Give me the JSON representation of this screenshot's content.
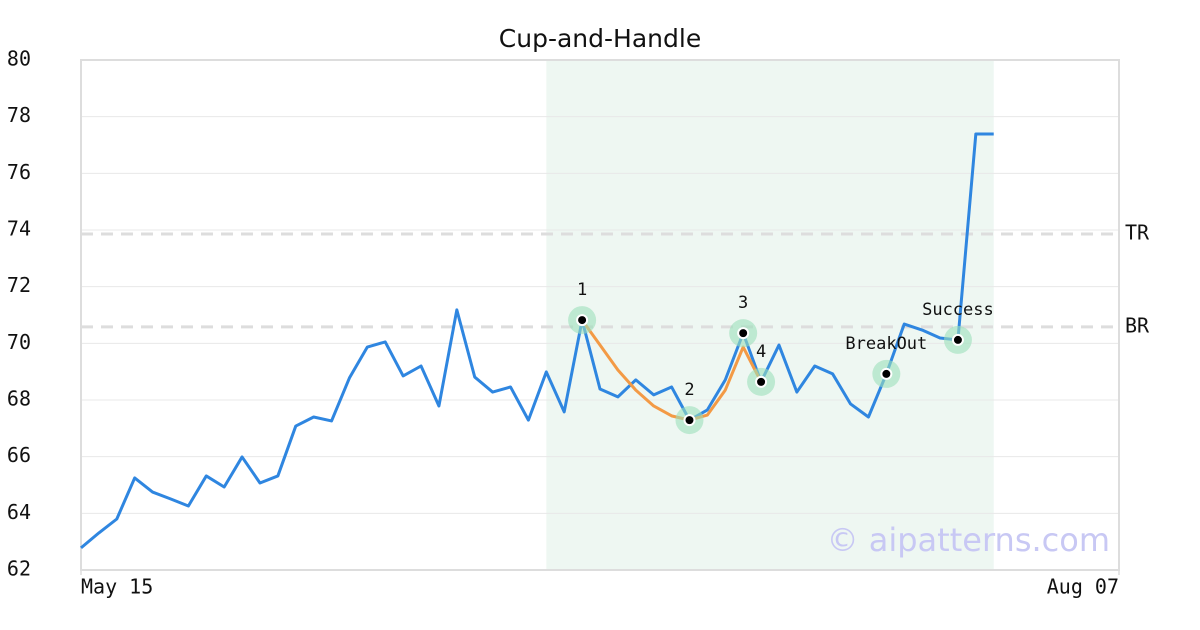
{
  "chart_data": {
    "type": "line",
    "title": "Cup-and-Handle",
    "x": [
      0,
      1,
      2,
      3,
      4,
      5,
      6,
      7,
      8,
      9,
      10,
      11,
      12,
      13,
      14,
      15,
      16,
      17,
      18,
      19,
      20,
      21,
      22,
      23,
      24,
      25,
      26,
      27,
      28,
      29,
      30,
      31,
      32,
      33,
      34,
      35,
      36,
      37,
      38,
      39,
      40,
      41,
      42,
      43,
      44,
      45,
      46,
      47,
      48,
      49,
      50,
      51
    ],
    "xlim": [
      0,
      58
    ],
    "xticks": [
      {
        "value": 0,
        "label": "May 15"
      },
      {
        "value": 58,
        "label": "Aug 07"
      }
    ],
    "ylim": [
      62,
      80
    ],
    "yticks": [
      62,
      64,
      66,
      68,
      70,
      72,
      74,
      76,
      78,
      80
    ],
    "grid": true,
    "series": [
      {
        "color": "#2f86e0",
        "values": [
          62.78,
          63.31,
          63.8,
          65.25,
          64.75,
          64.51,
          64.26,
          65.32,
          64.93,
          65.99,
          65.07,
          65.32,
          67.08,
          67.4,
          67.26,
          68.78,
          69.87,
          70.05,
          68.85,
          69.2,
          67.79,
          71.18,
          68.81,
          68.28,
          68.46,
          67.29,
          68.99,
          67.58,
          70.82,
          68.39,
          68.11,
          68.71,
          68.18,
          68.46,
          67.29,
          67.65,
          68.71,
          70.36,
          68.64,
          69.94,
          68.28,
          69.2,
          68.92,
          67.86,
          67.4,
          68.92,
          70.68,
          70.47,
          70.19,
          70.12,
          77.39,
          77.39
        ]
      },
      {
        "color": "#f39a45",
        "values": [
          null,
          null,
          null,
          null,
          null,
          null,
          null,
          null,
          null,
          null,
          null,
          null,
          null,
          null,
          null,
          null,
          null,
          null,
          null,
          null,
          null,
          null,
          null,
          null,
          null,
          null,
          null,
          null,
          70.82,
          69.94,
          69.06,
          68.35,
          67.79,
          67.44,
          67.29,
          67.47,
          68.35,
          69.87,
          68.64,
          null,
          null,
          null,
          null,
          null,
          null,
          null,
          null,
          null,
          null,
          null,
          null,
          null
        ]
      }
    ],
    "highlight_range": [
      26,
      51
    ],
    "highlight_color": "#eef7f2",
    "levels": [
      {
        "label": "TR",
        "value": 73.86
      },
      {
        "label": "BR",
        "value": 70.58
      }
    ],
    "pattern_points": [
      {
        "label": "1",
        "x": 28,
        "y": 70.82
      },
      {
        "label": "2",
        "x": 34,
        "y": 67.29
      },
      {
        "label": "3",
        "x": 37,
        "y": 70.36
      },
      {
        "label": "4",
        "x": 38,
        "y": 68.64
      },
      {
        "label": "BreakOut",
        "x": 45,
        "y": 68.92
      },
      {
        "label": "Success",
        "x": 49,
        "y": 70.12
      }
    ],
    "watermark": "© aipatterns.com"
  }
}
